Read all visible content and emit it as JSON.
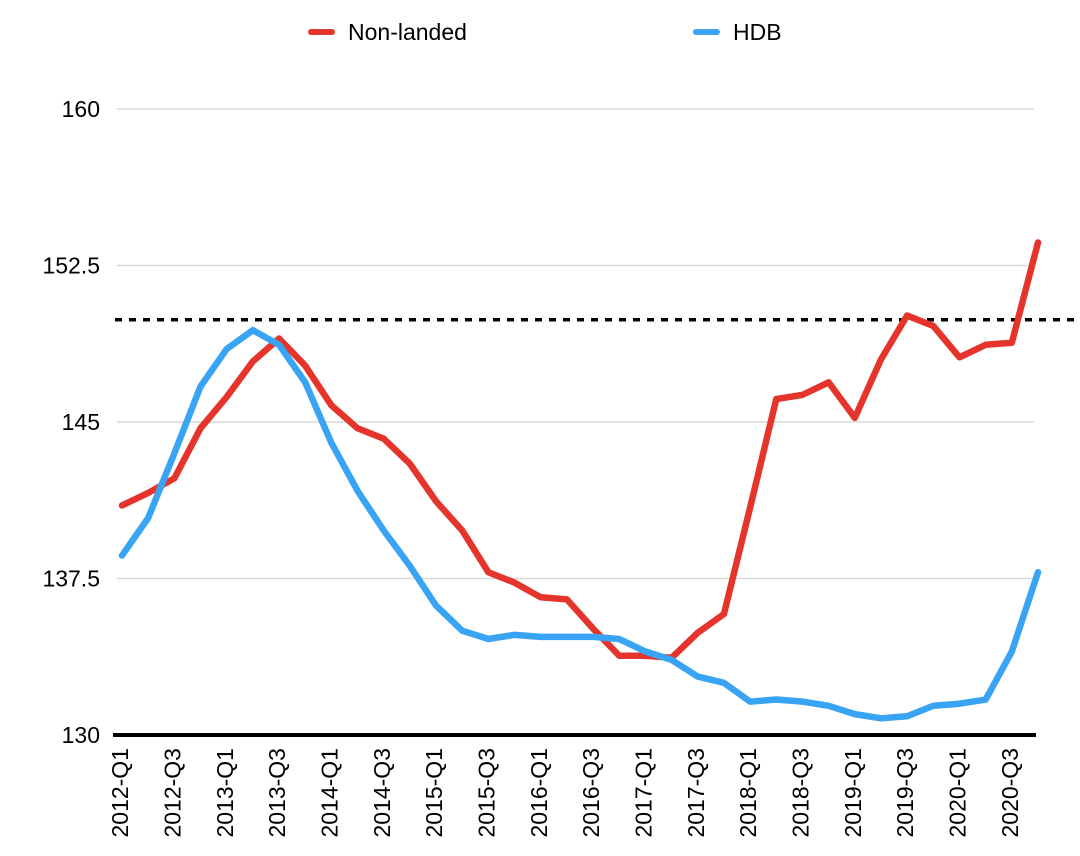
{
  "chart_data": {
    "type": "line",
    "title": "",
    "xlabel": "",
    "ylabel": "",
    "ylim": [
      130,
      160
    ],
    "y_ticks": [
      130,
      137.5,
      145,
      152.5,
      160
    ],
    "grid": "horizontal",
    "legend_position": "top",
    "reference_line": {
      "value": 149.9,
      "style": "dotted",
      "color": "#000000"
    },
    "axis_color": "#000000",
    "gridline_color": "#d9d9d9",
    "x_categories": [
      "2012-Q1",
      "2012-Q2",
      "2012-Q3",
      "2012-Q4",
      "2013-Q1",
      "2013-Q2",
      "2013-Q3",
      "2013-Q4",
      "2014-Q1",
      "2014-Q2",
      "2014-Q3",
      "2014-Q4",
      "2015-Q1",
      "2015-Q2",
      "2015-Q3",
      "2015-Q4",
      "2016-Q1",
      "2016-Q2",
      "2016-Q3",
      "2016-Q4",
      "2017-Q1",
      "2017-Q2",
      "2017-Q3",
      "2017-Q4",
      "2018-Q1",
      "2018-Q2",
      "2018-Q3",
      "2018-Q4",
      "2019-Q1",
      "2019-Q2",
      "2019-Q3",
      "2019-Q4",
      "2020-Q1",
      "2020-Q2",
      "2020-Q3",
      "2020-Q4"
    ],
    "x_tick_labels": [
      "2012-Q1",
      "2012-Q3",
      "2013-Q1",
      "2013-Q3",
      "2014-Q1",
      "2014-Q3",
      "2015-Q1",
      "2015-Q3",
      "2016-Q1",
      "2016-Q3",
      "2017-Q1",
      "2017-Q3",
      "2018-Q1",
      "2018-Q3",
      "2019-Q1",
      "2019-Q3",
      "2020-Q1",
      "2020-Q3"
    ],
    "series": [
      {
        "name": "Non-landed",
        "color": "#e5342c",
        "values": [
          141.0,
          141.6,
          142.3,
          144.7,
          146.2,
          147.9,
          149.0,
          147.7,
          145.8,
          144.7,
          144.2,
          143.0,
          141.2,
          139.8,
          137.8,
          137.3,
          136.6,
          136.5,
          135.1,
          133.8,
          133.8,
          133.7,
          134.9,
          135.8,
          140.9,
          146.1,
          146.3,
          146.9,
          145.2,
          148.0,
          150.1,
          149.6,
          148.1,
          148.7,
          148.8,
          153.6
        ]
      },
      {
        "name": "HDB",
        "color": "#39a3f4",
        "values": [
          138.6,
          140.4,
          143.5,
          146.7,
          148.5,
          149.4,
          148.7,
          146.9,
          144.0,
          141.7,
          139.8,
          138.1,
          136.2,
          135.0,
          134.6,
          134.8,
          134.7,
          134.7,
          134.7,
          134.6,
          134.0,
          133.6,
          132.8,
          132.5,
          131.6,
          131.7,
          131.6,
          131.4,
          131.0,
          130.8,
          130.9,
          131.4,
          131.5,
          131.7,
          134.0,
          137.8
        ]
      }
    ]
  }
}
